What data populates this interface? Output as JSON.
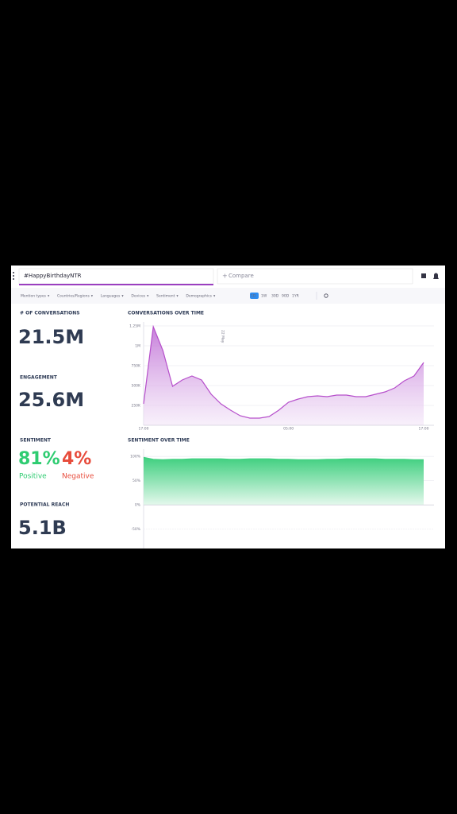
{
  "search": {
    "query": "#HappyBirthdayNTR",
    "compare": "Compare"
  },
  "filters": [
    "Mention types",
    "Countries/Regions",
    "Languages",
    "Devices",
    "Sentiment",
    "Demographics"
  ],
  "time_ranges": [
    "1D",
    "1W",
    "30D",
    "90D",
    "1YR"
  ],
  "kpis": {
    "conversations": {
      "label": "# OF CONVERSATIONS",
      "value": "21.5M"
    },
    "engagement": {
      "label": "ENGAGEMENT",
      "value": "25.6M"
    },
    "sentiment": {
      "label": "SENTIMENT",
      "positive": {
        "value": "81%",
        "label": "Positive"
      },
      "negative": {
        "value": "4%",
        "label": "Negative"
      }
    },
    "reach": {
      "label": "POTENTIAL REACH",
      "value": "5.1B"
    }
  },
  "chart_data": [
    {
      "type": "area",
      "title": "CONVERSATIONS OVER TIME",
      "annotation": "22 May",
      "color": "#b64fcb",
      "categories": [
        "17:00",
        null,
        null,
        null,
        null,
        null,
        null,
        null,
        null,
        null,
        null,
        null,
        null,
        null,
        null,
        "05:00",
        null,
        null,
        null,
        null,
        null,
        null,
        null,
        null,
        null,
        null,
        null,
        null,
        null,
        "17:00"
      ],
      "values": [
        270000,
        1240000,
        940000,
        490000,
        570000,
        620000,
        570000,
        390000,
        270000,
        190000,
        120000,
        90000,
        90000,
        110000,
        190000,
        290000,
        330000,
        360000,
        370000,
        360000,
        380000,
        380000,
        360000,
        360000,
        390000,
        420000,
        470000,
        560000,
        620000,
        790000
      ],
      "ylim": [
        0,
        1300000
      ],
      "yticks": [
        {
          "value": 250000,
          "label": "250K"
        },
        {
          "value": 500000,
          "label": "500K"
        },
        {
          "value": 750000,
          "label": "750K"
        },
        {
          "value": 1000000,
          "label": "1M"
        },
        {
          "value": 1250000,
          "label": "1.25M"
        }
      ]
    },
    {
      "type": "area",
      "title": "SENTIMENT OVER TIME",
      "color": "#3fcf7f",
      "values": [
        98,
        94,
        93,
        94,
        94,
        95,
        95,
        95,
        95,
        94,
        94,
        95,
        95,
        95,
        94,
        94,
        93,
        93,
        93,
        94,
        94,
        95,
        95,
        95,
        95,
        94,
        94,
        94,
        93,
        93
      ],
      "ylim": [
        -90,
        115
      ],
      "yticks": [
        {
          "value": 100,
          "label": "100%"
        },
        {
          "value": 50,
          "label": "50%"
        },
        {
          "value": 0,
          "label": "0%"
        },
        {
          "value": -50,
          "label": "-50%"
        }
      ]
    }
  ]
}
